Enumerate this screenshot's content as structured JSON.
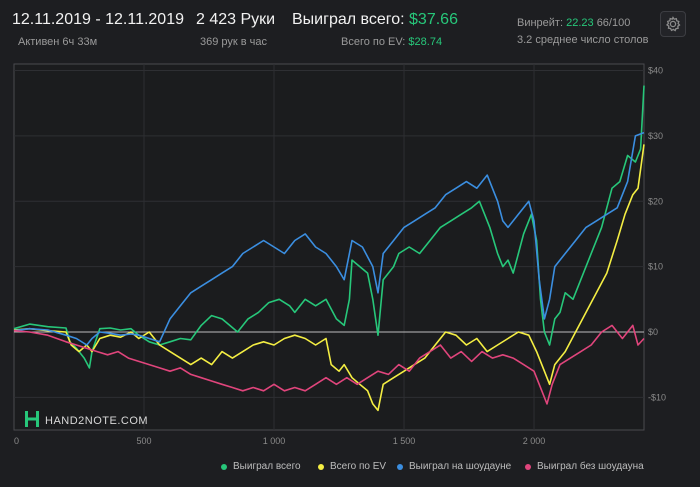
{
  "header": {
    "date_range": "12.11.2019 - 12.11.2019",
    "active_time": "Активен 6ч 33м",
    "hands": "2 423 Руки",
    "hands_per_hour": "369 рук в час",
    "won_total_label": "Выиграл всего:",
    "won_total_value": "$37.66",
    "ev_total_label": "Всего по EV:",
    "ev_total_value": "$28.74",
    "winrate_label": "Винрейт:",
    "winrate_value": "22.23",
    "winrate_suffix": "66/100",
    "tables_avg": "3.2 среднее число столов"
  },
  "logo": {
    "text": "HAND2NOTE.COM"
  },
  "legend": [
    {
      "label": "Выиграл всего",
      "color": "#27c77a"
    },
    {
      "label": "Всего по EV",
      "color": "#f4ee43"
    },
    {
      "label": "Выиграл на шоудауне",
      "color": "#3b8ee0"
    },
    {
      "label": "Выиграл без шоудауна",
      "color": "#e0457c"
    }
  ],
  "chart_data": {
    "type": "line",
    "xlabel": "",
    "ylabel": "",
    "x_ticks": [
      0,
      500,
      1000,
      1500,
      2000
    ],
    "x_tick_labels": [
      "0",
      "500",
      "1 000",
      "1 500",
      "2 000"
    ],
    "y_ticks": [
      -10,
      0,
      10,
      20,
      30,
      40
    ],
    "y_tick_labels": [
      "-$10",
      "$0",
      "$10",
      "$20",
      "$30",
      "$40"
    ],
    "xlim": [
      0,
      2423
    ],
    "ylim": [
      -15,
      41
    ],
    "grid": true,
    "series": [
      {
        "name": "Выиграл всего",
        "color": "#27c77a",
        "points": [
          [
            0,
            0.5
          ],
          [
            60,
            1.2
          ],
          [
            130,
            0.8
          ],
          [
            200,
            0.6
          ],
          [
            215,
            -1.5
          ],
          [
            240,
            -2.5
          ],
          [
            270,
            -4
          ],
          [
            290,
            -5.5
          ],
          [
            300,
            -3
          ],
          [
            330,
            0.5
          ],
          [
            370,
            0.6
          ],
          [
            410,
            0.3
          ],
          [
            450,
            0.5
          ],
          [
            480,
            -0.5
          ],
          [
            520,
            -1.5
          ],
          [
            560,
            -2
          ],
          [
            600,
            -1.5
          ],
          [
            640,
            -1
          ],
          [
            680,
            -1.2
          ],
          [
            720,
            1
          ],
          [
            760,
            2.5
          ],
          [
            800,
            2
          ],
          [
            830,
            1
          ],
          [
            860,
            0
          ],
          [
            900,
            2
          ],
          [
            940,
            3
          ],
          [
            980,
            4.5
          ],
          [
            1020,
            5
          ],
          [
            1060,
            4
          ],
          [
            1080,
            3
          ],
          [
            1120,
            5
          ],
          [
            1160,
            4
          ],
          [
            1200,
            5
          ],
          [
            1240,
            2
          ],
          [
            1270,
            1
          ],
          [
            1290,
            5
          ],
          [
            1300,
            11
          ],
          [
            1330,
            10
          ],
          [
            1360,
            9
          ],
          [
            1380,
            5
          ],
          [
            1400,
            -0.5
          ],
          [
            1420,
            8
          ],
          [
            1460,
            10
          ],
          [
            1480,
            12
          ],
          [
            1520,
            13
          ],
          [
            1560,
            12
          ],
          [
            1600,
            14
          ],
          [
            1640,
            16
          ],
          [
            1680,
            17
          ],
          [
            1720,
            18
          ],
          [
            1760,
            19
          ],
          [
            1790,
            20
          ],
          [
            1810,
            18
          ],
          [
            1830,
            16
          ],
          [
            1860,
            12
          ],
          [
            1880,
            10
          ],
          [
            1900,
            11
          ],
          [
            1920,
            9
          ],
          [
            1940,
            12
          ],
          [
            1960,
            15
          ],
          [
            1990,
            18
          ],
          [
            2010,
            14
          ],
          [
            2025,
            5
          ],
          [
            2040,
            0
          ],
          [
            2060,
            -2
          ],
          [
            2080,
            2
          ],
          [
            2100,
            3
          ],
          [
            2120,
            6
          ],
          [
            2150,
            5
          ],
          [
            2180,
            8
          ],
          [
            2220,
            12
          ],
          [
            2260,
            16
          ],
          [
            2300,
            22
          ],
          [
            2330,
            23
          ],
          [
            2360,
            27
          ],
          [
            2390,
            26
          ],
          [
            2410,
            28
          ],
          [
            2423,
            37.7
          ]
        ]
      },
      {
        "name": "Всего по EV",
        "color": "#f4ee43",
        "points": [
          [
            0,
            0.3
          ],
          [
            60,
            0.5
          ],
          [
            130,
            0.2
          ],
          [
            200,
            0
          ],
          [
            220,
            -2
          ],
          [
            250,
            -3
          ],
          [
            280,
            -2
          ],
          [
            300,
            -3
          ],
          [
            330,
            -1
          ],
          [
            370,
            -0.5
          ],
          [
            410,
            -0.8
          ],
          [
            450,
            0
          ],
          [
            480,
            -1
          ],
          [
            520,
            0
          ],
          [
            560,
            -2
          ],
          [
            600,
            -3
          ],
          [
            640,
            -4
          ],
          [
            680,
            -5
          ],
          [
            720,
            -4
          ],
          [
            760,
            -5
          ],
          [
            800,
            -3
          ],
          [
            840,
            -4
          ],
          [
            880,
            -3
          ],
          [
            920,
            -2
          ],
          [
            960,
            -1.5
          ],
          [
            1000,
            -2
          ],
          [
            1040,
            -1
          ],
          [
            1080,
            -0.5
          ],
          [
            1120,
            -1
          ],
          [
            1160,
            -2
          ],
          [
            1200,
            -1
          ],
          [
            1220,
            -5
          ],
          [
            1250,
            -6
          ],
          [
            1270,
            -5
          ],
          [
            1300,
            -7
          ],
          [
            1330,
            -8
          ],
          [
            1360,
            -9
          ],
          [
            1380,
            -11
          ],
          [
            1400,
            -12
          ],
          [
            1420,
            -8
          ],
          [
            1460,
            -7
          ],
          [
            1500,
            -6
          ],
          [
            1540,
            -5
          ],
          [
            1580,
            -4
          ],
          [
            1620,
            -2
          ],
          [
            1660,
            0
          ],
          [
            1700,
            -0.5
          ],
          [
            1740,
            -2
          ],
          [
            1780,
            -1
          ],
          [
            1820,
            -3
          ],
          [
            1860,
            -2
          ],
          [
            1900,
            -1
          ],
          [
            1940,
            0
          ],
          [
            1980,
            -0.5
          ],
          [
            2010,
            -3
          ],
          [
            2040,
            -6
          ],
          [
            2060,
            -8
          ],
          [
            2080,
            -5
          ],
          [
            2120,
            -3
          ],
          [
            2160,
            0
          ],
          [
            2200,
            3
          ],
          [
            2240,
            6
          ],
          [
            2280,
            9
          ],
          [
            2320,
            14
          ],
          [
            2350,
            18
          ],
          [
            2380,
            21
          ],
          [
            2400,
            22
          ],
          [
            2423,
            28.7
          ]
        ]
      },
      {
        "name": "Выиграл на шоудауне",
        "color": "#3b8ee0",
        "points": [
          [
            0,
            0.2
          ],
          [
            60,
            0.5
          ],
          [
            130,
            0.3
          ],
          [
            200,
            -0.5
          ],
          [
            240,
            -1
          ],
          [
            280,
            -2
          ],
          [
            300,
            -1
          ],
          [
            330,
            0
          ],
          [
            370,
            -0.2
          ],
          [
            410,
            -0.5
          ],
          [
            450,
            -0.3
          ],
          [
            480,
            -0.5
          ],
          [
            520,
            -1
          ],
          [
            560,
            -1.5
          ],
          [
            600,
            2
          ],
          [
            640,
            4
          ],
          [
            680,
            6
          ],
          [
            720,
            7
          ],
          [
            760,
            8
          ],
          [
            800,
            9
          ],
          [
            840,
            10
          ],
          [
            880,
            12
          ],
          [
            920,
            13
          ],
          [
            960,
            14
          ],
          [
            1000,
            13
          ],
          [
            1040,
            12
          ],
          [
            1080,
            14
          ],
          [
            1120,
            15
          ],
          [
            1160,
            13
          ],
          [
            1200,
            12
          ],
          [
            1240,
            10
          ],
          [
            1270,
            8
          ],
          [
            1300,
            14
          ],
          [
            1340,
            13
          ],
          [
            1380,
            10
          ],
          [
            1400,
            6
          ],
          [
            1420,
            12
          ],
          [
            1460,
            14
          ],
          [
            1500,
            16
          ],
          [
            1540,
            17
          ],
          [
            1580,
            18
          ],
          [
            1620,
            19
          ],
          [
            1660,
            21
          ],
          [
            1700,
            22
          ],
          [
            1740,
            23
          ],
          [
            1780,
            22
          ],
          [
            1820,
            24
          ],
          [
            1860,
            20
          ],
          [
            1880,
            17
          ],
          [
            1900,
            16
          ],
          [
            1940,
            18
          ],
          [
            1980,
            20
          ],
          [
            2000,
            17
          ],
          [
            2020,
            8
          ],
          [
            2040,
            2
          ],
          [
            2060,
            5
          ],
          [
            2080,
            10
          ],
          [
            2120,
            12
          ],
          [
            2160,
            14
          ],
          [
            2200,
            16
          ],
          [
            2240,
            17
          ],
          [
            2280,
            18
          ],
          [
            2320,
            19
          ],
          [
            2360,
            23
          ],
          [
            2390,
            30
          ],
          [
            2423,
            30.5
          ]
        ]
      },
      {
        "name": "Выиграл без шоудауна",
        "color": "#e0457c",
        "points": [
          [
            0,
            0.2
          ],
          [
            60,
            0
          ],
          [
            130,
            -0.5
          ],
          [
            200,
            -1.5
          ],
          [
            240,
            -2
          ],
          [
            280,
            -2.5
          ],
          [
            320,
            -3
          ],
          [
            360,
            -3.5
          ],
          [
            400,
            -3
          ],
          [
            440,
            -4
          ],
          [
            480,
            -4.5
          ],
          [
            520,
            -5
          ],
          [
            560,
            -5.5
          ],
          [
            600,
            -6
          ],
          [
            640,
            -5.5
          ],
          [
            680,
            -6.5
          ],
          [
            720,
            -7
          ],
          [
            760,
            -7.5
          ],
          [
            800,
            -8
          ],
          [
            840,
            -8.5
          ],
          [
            880,
            -9
          ],
          [
            920,
            -8.5
          ],
          [
            960,
            -9
          ],
          [
            1000,
            -8
          ],
          [
            1040,
            -9
          ],
          [
            1080,
            -8.5
          ],
          [
            1120,
            -9
          ],
          [
            1160,
            -8
          ],
          [
            1200,
            -7
          ],
          [
            1240,
            -8
          ],
          [
            1280,
            -7
          ],
          [
            1320,
            -8
          ],
          [
            1360,
            -7
          ],
          [
            1400,
            -6
          ],
          [
            1440,
            -6.5
          ],
          [
            1480,
            -5
          ],
          [
            1520,
            -6
          ],
          [
            1560,
            -4
          ],
          [
            1600,
            -3
          ],
          [
            1640,
            -2
          ],
          [
            1680,
            -4
          ],
          [
            1720,
            -3
          ],
          [
            1760,
            -4.5
          ],
          [
            1800,
            -3
          ],
          [
            1840,
            -4
          ],
          [
            1880,
            -3.5
          ],
          [
            1920,
            -4
          ],
          [
            1960,
            -5
          ],
          [
            2000,
            -6
          ],
          [
            2030,
            -9
          ],
          [
            2050,
            -11
          ],
          [
            2070,
            -8
          ],
          [
            2100,
            -5
          ],
          [
            2140,
            -4
          ],
          [
            2180,
            -3
          ],
          [
            2220,
            -2
          ],
          [
            2260,
            0
          ],
          [
            2300,
            1
          ],
          [
            2340,
            -1
          ],
          [
            2380,
            1
          ],
          [
            2400,
            -2
          ],
          [
            2423,
            -1
          ]
        ]
      }
    ]
  }
}
